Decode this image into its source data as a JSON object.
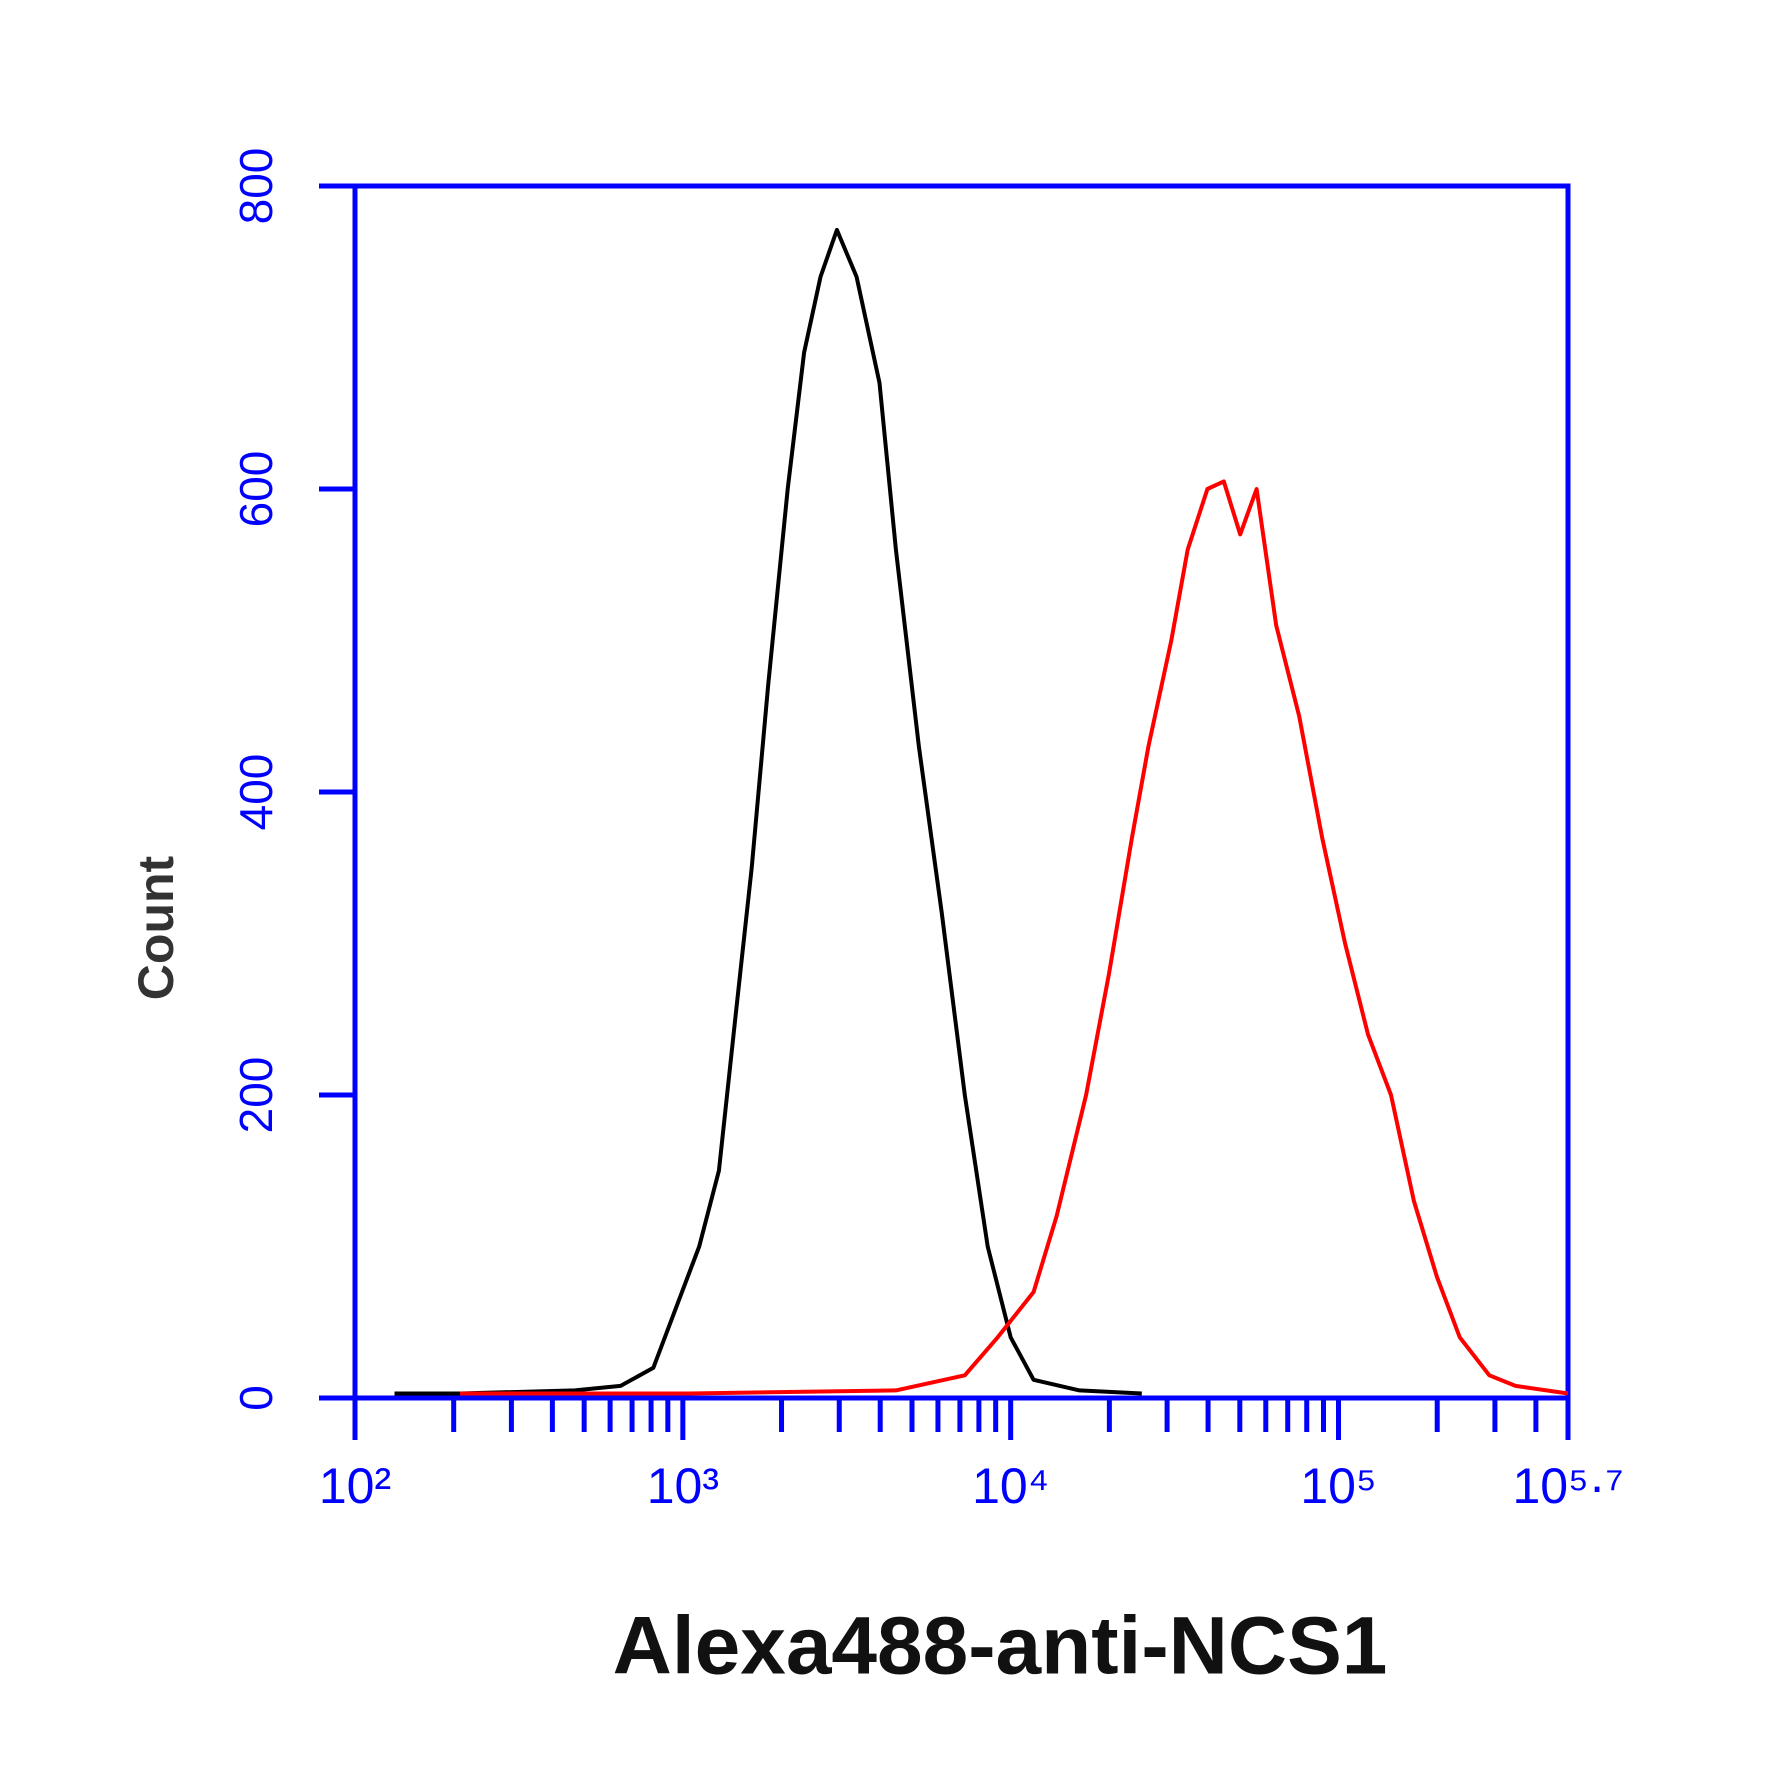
{
  "chart_data": {
    "type": "line",
    "xlabel": "Alexa488-anti-NCS1",
    "ylabel": "Count",
    "xscale": "log",
    "xlim": [
      100,
      501187
    ],
    "ylim": [
      0,
      800
    ],
    "xticks": [
      {
        "value": 100,
        "label": "10²"
      },
      {
        "value": 1000,
        "label": "10³"
      },
      {
        "value": 10000,
        "label": "10⁴"
      },
      {
        "value": 100000,
        "label": "10⁵"
      },
      {
        "value": 501187,
        "label": "10⁵·⁷"
      }
    ],
    "xminor_ticks": [
      200,
      300,
      400,
      500,
      600,
      700,
      800,
      900,
      2000,
      3000,
      4000,
      5000,
      6000,
      7000,
      8000,
      9000,
      20000,
      30000,
      40000,
      50000,
      60000,
      70000,
      80000,
      90000,
      200000,
      300000,
      400000
    ],
    "yticks": [
      0,
      200,
      400,
      600,
      800
    ],
    "axis_color": "#0000ff",
    "series": [
      {
        "color": "#000000",
        "x": [
          132,
          209,
          468,
          646,
          813,
          955,
          1122,
          1288,
          1445,
          1622,
          1820,
          2089,
          2344,
          2630,
          2951,
          3388,
          3981,
          4467,
          5248,
          6166,
          7244,
          8511,
          10000,
          11749,
          16218,
          25119
        ],
        "values": [
          3,
          3,
          5,
          8,
          20,
          60,
          100,
          150,
          250,
          350,
          470,
          600,
          690,
          740,
          771,
          740,
          670,
          560,
          430,
          320,
          200,
          100,
          40,
          12,
          5,
          3
        ]
      },
      {
        "color": "#ff0000",
        "x": [
          209,
          1047,
          4467,
          7244,
          9120,
          11749,
          13804,
          16982,
          19953,
          23442,
          26303,
          30903,
          34674,
          39811,
          44668,
          50119,
          56234,
          64565,
          75858,
          89125,
          104713,
          123027,
          144544,
          169824,
          199526,
          234423,
          288403,
          346737,
          501187
        ],
        "values": [
          3,
          3,
          5,
          15,
          40,
          70,
          120,
          200,
          280,
          370,
          430,
          500,
          560,
          600,
          605,
          570,
          600,
          510,
          450,
          370,
          300,
          240,
          200,
          130,
          80,
          40,
          15,
          8,
          3
        ]
      }
    ]
  }
}
